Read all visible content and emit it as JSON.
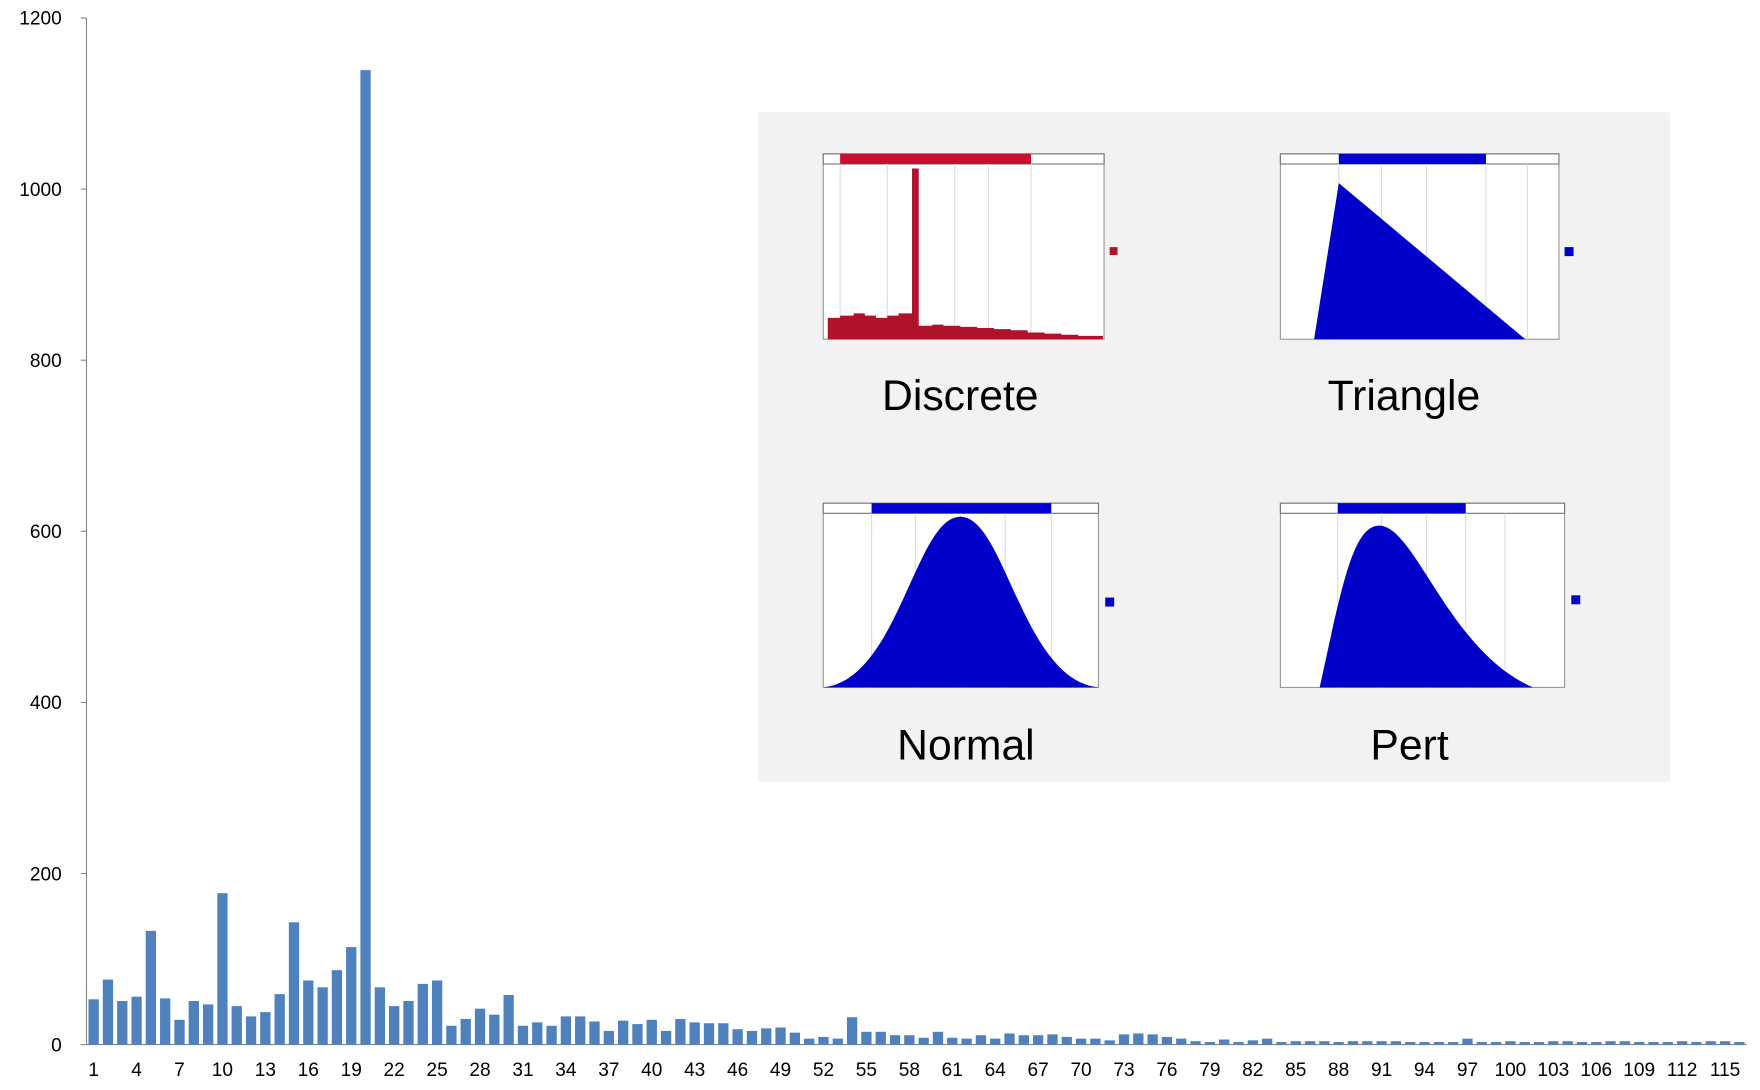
{
  "chart_data": {
    "type": "bar",
    "categories": [
      "1",
      null,
      null,
      "4",
      null,
      null,
      "7",
      null,
      null,
      "10",
      null,
      null,
      "13",
      null,
      null,
      "16",
      null,
      null,
      "19",
      null,
      null,
      "22",
      null,
      null,
      "25",
      null,
      null,
      "28",
      null,
      null,
      "31",
      null,
      null,
      "34",
      null,
      null,
      "37",
      null,
      null,
      "40",
      null,
      null,
      "43",
      null,
      null,
      "46",
      null,
      null,
      "49",
      null,
      null,
      "52",
      null,
      null,
      "55",
      null,
      null,
      "58",
      null,
      null,
      "61",
      null,
      null,
      "64",
      null,
      null,
      "67",
      null,
      null,
      "70",
      null,
      null,
      "73",
      null,
      null,
      "76",
      null,
      null,
      "79",
      null,
      null,
      "82",
      null,
      null,
      "85",
      null,
      null,
      "88",
      null,
      null,
      "91",
      null,
      null,
      "94",
      null,
      null,
      "97",
      null,
      null,
      "100",
      null,
      null,
      "103",
      null,
      null,
      "106",
      null,
      null,
      "109",
      null,
      null,
      "112",
      null,
      null,
      "115",
      null
    ],
    "values": [
      53,
      76,
      51,
      56,
      133,
      54,
      29,
      51,
      47,
      177,
      45,
      33,
      38,
      59,
      143,
      75,
      67,
      87,
      114,
      1139,
      67,
      45,
      51,
      71,
      75,
      22,
      30,
      42,
      35,
      58,
      22,
      26,
      22,
      33,
      33,
      27,
      16,
      28,
      24,
      29,
      16,
      30,
      26,
      25,
      25,
      18,
      16,
      19,
      20,
      14,
      7,
      9,
      7,
      32,
      15,
      15,
      11,
      11,
      8,
      15,
      8,
      7,
      11,
      7,
      13,
      11,
      11,
      12,
      9,
      7,
      7,
      5,
      12,
      13,
      12,
      9,
      7,
      4,
      3,
      6,
      3,
      5,
      7,
      3,
      4,
      4,
      4,
      3,
      4,
      4,
      4,
      4,
      3,
      3,
      3,
      3,
      7,
      3,
      3,
      4,
      3,
      3,
      4,
      4,
      3,
      3,
      4,
      4,
      3,
      3,
      3,
      4,
      3,
      4,
      4,
      3
    ],
    "color": "#4f81bd",
    "ylim": [
      0,
      1200
    ],
    "yticks": [
      0,
      200,
      400,
      600,
      800,
      1000,
      1200
    ],
    "grid": false,
    "annotations": [
      "Discrete",
      "Triangle",
      "Normal",
      "Pert"
    ]
  }
}
